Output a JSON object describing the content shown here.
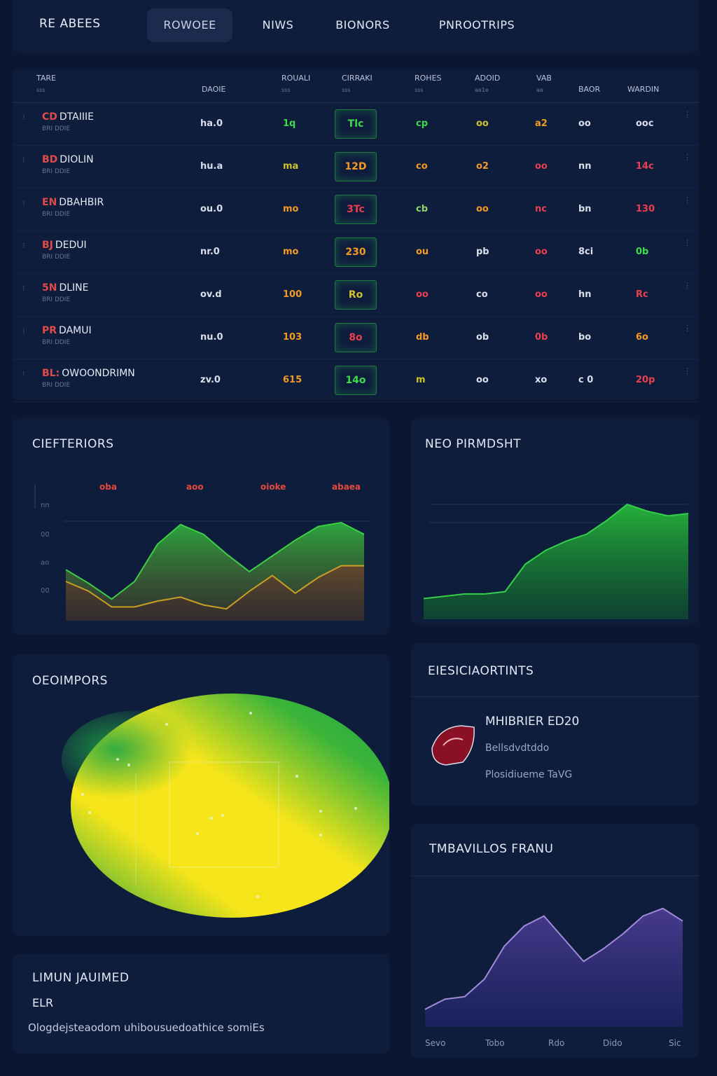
{
  "nav": {
    "brand": "RE ABEES",
    "tabs": [
      {
        "label": "ROWOEE",
        "active": true
      },
      {
        "label": "NIWS",
        "active": false
      },
      {
        "label": "BIONORS",
        "active": false
      },
      {
        "label": "PNROOTRIPS",
        "active": false
      }
    ]
  },
  "table": {
    "headers": [
      {
        "label": "TARE",
        "sub": "sss"
      },
      {
        "label": "DAOIE",
        "sub": ""
      },
      {
        "label": "ROUALI",
        "sub": "sss"
      },
      {
        "label": "CIRRAKI",
        "sub": "sss"
      },
      {
        "label": "ROHES",
        "sub": "sss"
      },
      {
        "label": "ADOID",
        "sub": "aa1e"
      },
      {
        "label": "VAB",
        "sub": "aa"
      },
      {
        "label": "BAOR",
        "sub": ""
      },
      {
        "label": "WARDIN",
        "sub": ""
      }
    ],
    "rows": [
      {
        "abbr": "CD",
        "name": "DTAIIIE",
        "sub": "BRI DDIE",
        "c1": "ha.0",
        "c2": "1q",
        "c3": "Tlc",
        "c4": "cp",
        "c5": "oo",
        "c6": "a2",
        "c7": "oo",
        "c8": "ooc"
      },
      {
        "abbr": "BD",
        "name": "DIOLIN",
        "sub": "BRI DDIE",
        "c1": "hu.a",
        "c2": "ma",
        "c3": "12D",
        "c4": "co",
        "c5": "o2",
        "c6": "oo",
        "c7": "nn",
        "c8": "14c"
      },
      {
        "abbr": "EN",
        "name": "DBAHBIR",
        "sub": "BRI DDIE",
        "c1": "ou.0",
        "c2": "mo",
        "c3": "3Tc",
        "c4": "cb",
        "c5": "oo",
        "c6": "nc",
        "c7": "bn",
        "c8": "130"
      },
      {
        "abbr": "BJ",
        "name": "DEDUI",
        "sub": "BRI DDIE",
        "c1": "nr.0",
        "c2": "mo",
        "c3": "230",
        "c4": "ou",
        "c5": "pb",
        "c6": "oo",
        "c7": "8ci",
        "c8": "0b"
      },
      {
        "abbr": "5N",
        "name": "DLINE",
        "sub": "BRI DDIE",
        "c1": "ov.d",
        "c2": "100",
        "c3": "Ro",
        "c4": "oo",
        "c5": "co",
        "c6": "oo",
        "c7": "hn",
        "c8": "Rc"
      },
      {
        "abbr": "PR",
        "name": "DAMUI",
        "sub": "BRI DDIE",
        "c1": "nu.0",
        "c2": "103",
        "c3": "8o",
        "c4": "db",
        "c5": "ob",
        "c6": "0b",
        "c7": "bo",
        "c8": "6o"
      },
      {
        "abbr": "BL:",
        "name": "OWOONDRIMN",
        "sub": "BRI DDIE",
        "c1": "zv.0",
        "c2": "615",
        "c3": "14o",
        "c4": "m",
        "c5": "oo",
        "c6": "xo",
        "c7": "c 0",
        "c8": "20p"
      }
    ]
  },
  "chart1": {
    "title": "CIEFTERIORS",
    "labels": [
      "oba",
      "aoo",
      "oioke",
      "abaea"
    ],
    "yticks": [
      "nn",
      "00",
      "ao",
      "00"
    ],
    "series_a": [
      52,
      38,
      22,
      40,
      78,
      98,
      88,
      68,
      50,
      66,
      82,
      96,
      100,
      88
    ],
    "series_b": [
      40,
      30,
      14,
      14,
      20,
      24,
      16,
      12,
      30,
      46,
      28,
      44,
      56,
      56
    ]
  },
  "chart2": {
    "title": "NEO PIRMDSHT",
    "series": [
      18,
      20,
      22,
      22,
      24,
      48,
      60,
      68,
      74,
      86,
      100,
      94,
      90,
      92
    ]
  },
  "heatmap": {
    "title": "OEOIMPORS",
    "colors": {
      "low": "#1ea544",
      "high": "#f5e51a"
    }
  },
  "device": {
    "title": "EIESICIAORTINTS",
    "name": "MHIBRIER ED20",
    "line1": "Bellsdvdtddo",
    "line2": "Plosidiueme TaVG"
  },
  "trend": {
    "title": "TMBAVILLOS FRANU",
    "xlabels": [
      "Sevo",
      "Tobo",
      "Rdo",
      "Dido",
      "Sic"
    ],
    "series": [
      14,
      22,
      24,
      38,
      64,
      80,
      88,
      70,
      52,
      62,
      74,
      88,
      94,
      84
    ]
  },
  "news": {
    "title": "LIMUN JAUIMED",
    "tag": "ELR",
    "body": "Ologdejsteaodom uhibousuedoathice somiEs"
  }
}
